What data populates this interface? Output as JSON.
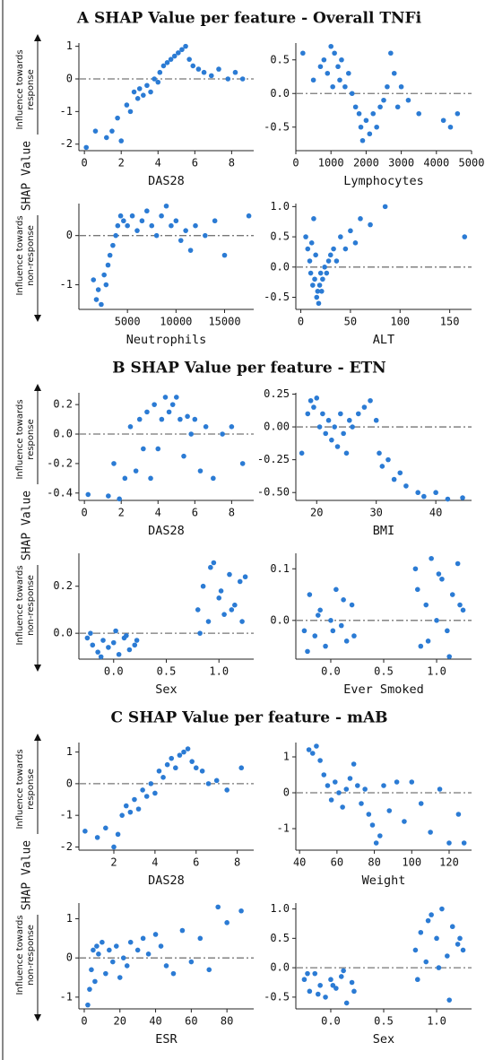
{
  "sections": [
    {
      "title": "A  SHAP Value per feature - Overall TNFi",
      "upper_note": [
        "Influence towards",
        "response"
      ],
      "side_label": "SHAP Value",
      "lower_note": [
        "Influence towards",
        "non-response"
      ]
    },
    {
      "title": "B  SHAP Value per feature - ETN",
      "upper_note": [
        "Influence towards",
        "response"
      ],
      "side_label": "SHAP Value",
      "lower_note": [
        "Influence towards",
        "non-response"
      ]
    },
    {
      "title": "C  SHAP Value per feature - mAB",
      "upper_note": [
        "Influence towards",
        "response"
      ],
      "side_label": "SHAP Value",
      "lower_note": [
        "Influence towards",
        "non-response"
      ]
    }
  ],
  "chart_data": [
    {
      "type": "scatter",
      "xlabel": "DAS28",
      "color": "#2b7bd4",
      "reference_line": 0,
      "x": [
        0.1,
        0.6,
        1.2,
        1.5,
        1.8,
        2.0,
        2.3,
        2.5,
        2.7,
        2.9,
        3.0,
        3.2,
        3.4,
        3.6,
        3.8,
        4.0,
        4.1,
        4.3,
        4.5,
        4.7,
        4.9,
        5.1,
        5.3,
        5.5,
        5.7,
        5.9,
        6.2,
        6.5,
        6.9,
        7.3,
        7.8,
        8.2,
        8.6
      ],
      "y": [
        -2.1,
        -1.6,
        -1.8,
        -1.6,
        -1.2,
        -1.9,
        -0.8,
        -1.0,
        -0.4,
        -0.6,
        -0.3,
        -0.5,
        -0.2,
        -0.4,
        0.0,
        -0.1,
        0.2,
        0.4,
        0.5,
        0.6,
        0.7,
        0.8,
        0.9,
        1.0,
        0.6,
        0.4,
        0.3,
        0.2,
        0.1,
        0.3,
        0.0,
        0.2,
        0.0
      ],
      "xlim": [
        -0.3,
        9.2
      ],
      "ylim": [
        -2.2,
        1.1
      ],
      "xticks": [
        0,
        2,
        4,
        6,
        8
      ],
      "yticks": [
        1,
        0,
        -1,
        -2
      ]
    },
    {
      "type": "scatter",
      "xlabel": "Lymphocytes",
      "color": "#2b7bd4",
      "reference_line": 0,
      "x": [
        200,
        500,
        700,
        800,
        900,
        1000,
        1050,
        1100,
        1200,
        1250,
        1300,
        1400,
        1500,
        1600,
        1700,
        1800,
        1850,
        1900,
        2000,
        2100,
        2200,
        2300,
        2400,
        2500,
        2600,
        2700,
        2800,
        2900,
        3000,
        3200,
        3500,
        4200,
        4400,
        4600
      ],
      "y": [
        0.6,
        0.2,
        0.4,
        0.5,
        0.3,
        0.7,
        0.1,
        0.6,
        0.4,
        0.2,
        0.5,
        0.1,
        0.3,
        0.0,
        -0.2,
        -0.3,
        -0.5,
        -0.7,
        -0.4,
        -0.6,
        -0.3,
        -0.5,
        -0.2,
        -0.1,
        0.1,
        0.6,
        0.3,
        -0.2,
        0.1,
        -0.1,
        -0.3,
        -0.4,
        -0.5,
        -0.3
      ],
      "xlim": [
        0,
        5000
      ],
      "ylim": [
        -0.85,
        0.75
      ],
      "xticks": [
        0,
        1000,
        2000,
        3000,
        4000,
        5000
      ],
      "yticks": [
        0.5,
        {
          "value": 0,
          "label": "0.0"
        },
        -0.5
      ]
    },
    {
      "type": "scatter",
      "xlabel": "Neutrophils",
      "color": "#2b7bd4",
      "reference_line": 0,
      "x": [
        1500,
        1800,
        2000,
        2300,
        2600,
        2800,
        3000,
        3200,
        3500,
        3800,
        4000,
        4300,
        4600,
        5000,
        5500,
        6000,
        6500,
        7000,
        7500,
        8000,
        8500,
        9000,
        9500,
        10000,
        10500,
        11000,
        11500,
        12000,
        13000,
        14000,
        15000,
        17500
      ],
      "y": [
        -0.9,
        -1.3,
        -1.1,
        -1.4,
        -0.8,
        -1.0,
        -0.6,
        -0.4,
        -0.2,
        0.0,
        0.2,
        0.4,
        0.3,
        0.2,
        0.4,
        0.1,
        0.3,
        0.5,
        0.2,
        0.0,
        0.4,
        0.6,
        0.2,
        0.3,
        -0.1,
        0.1,
        -0.3,
        0.2,
        0.0,
        0.3,
        -0.4,
        0.4
      ],
      "xlim": [
        0,
        18000
      ],
      "ylim": [
        -1.5,
        0.65
      ],
      "xticks": [
        5000,
        10000,
        15000
      ],
      "yticks": [
        0,
        -1
      ]
    },
    {
      "type": "scatter",
      "xlabel": "ALT",
      "color": "#2b7bd4",
      "reference_line": 0,
      "x": [
        5,
        7,
        9,
        10,
        11,
        12,
        13,
        14,
        15,
        16,
        17,
        18,
        19,
        20,
        21,
        22,
        24,
        26,
        28,
        30,
        33,
        36,
        40,
        45,
        50,
        55,
        60,
        70,
        85,
        165
      ],
      "y": [
        0.5,
        0.3,
        0.1,
        -0.1,
        0.4,
        -0.3,
        0.8,
        -0.2,
        0.2,
        -0.5,
        -0.4,
        -0.6,
        -0.3,
        -0.1,
        -0.4,
        -0.2,
        0.0,
        -0.1,
        0.1,
        0.2,
        0.3,
        0.1,
        0.5,
        0.3,
        0.6,
        0.4,
        0.8,
        0.7,
        1.0,
        0.5
      ],
      "xlim": [
        -5,
        172
      ],
      "ylim": [
        -0.7,
        1.05
      ],
      "xticks": [
        0,
        50,
        100,
        150
      ],
      "yticks": [
        {
          "value": 1,
          "label": "1.0"
        },
        0.5,
        {
          "value": 0,
          "label": "0.0"
        },
        -0.5
      ]
    },
    {
      "type": "scatter",
      "xlabel": "DAS28",
      "color": "#2b7bd4",
      "reference_line": 0,
      "x": [
        0.2,
        1.3,
        1.6,
        1.9,
        2.2,
        2.5,
        2.8,
        3.0,
        3.2,
        3.4,
        3.6,
        3.8,
        4.0,
        4.2,
        4.4,
        4.6,
        4.8,
        5.0,
        5.2,
        5.4,
        5.6,
        5.8,
        6.0,
        6.3,
        6.6,
        7.0,
        7.5,
        8.0,
        8.6
      ],
      "y": [
        -0.41,
        -0.42,
        -0.2,
        -0.44,
        -0.3,
        0.05,
        -0.25,
        0.1,
        -0.1,
        0.15,
        -0.3,
        0.2,
        -0.1,
        0.1,
        0.25,
        0.15,
        0.2,
        0.25,
        0.1,
        -0.15,
        0.12,
        0.0,
        0.1,
        -0.25,
        0.05,
        -0.3,
        0.0,
        0.05,
        -0.2
      ],
      "xlim": [
        -0.3,
        9.2
      ],
      "ylim": [
        -0.45,
        0.28
      ],
      "xticks": [
        0,
        2,
        4,
        6,
        8
      ],
      "yticks": [
        0.2,
        {
          "value": 0,
          "label": "0.0"
        },
        -0.2,
        -0.4
      ]
    },
    {
      "type": "scatter",
      "xlabel": "BMI",
      "color": "#2b7bd4",
      "reference_line": 0,
      "x": [
        17.5,
        18.5,
        19,
        19.5,
        20,
        20.5,
        21,
        21.5,
        22,
        22.5,
        23,
        23.5,
        24,
        24.5,
        25,
        25.5,
        26,
        27,
        28,
        29,
        30,
        30.5,
        31,
        32,
        33,
        34,
        35,
        37,
        38,
        40,
        42,
        44.5
      ],
      "y": [
        -0.2,
        0.1,
        0.2,
        0.15,
        0.22,
        0.0,
        0.1,
        -0.05,
        0.05,
        -0.1,
        0.0,
        -0.15,
        0.1,
        -0.05,
        -0.2,
        0.05,
        0.0,
        0.1,
        0.15,
        0.2,
        0.05,
        -0.2,
        -0.3,
        -0.25,
        -0.4,
        -0.35,
        -0.45,
        -0.5,
        -0.53,
        -0.5,
        -0.55,
        -0.54
      ],
      "xlim": [
        16.5,
        46
      ],
      "ylim": [
        -0.56,
        0.26
      ],
      "xticks": [
        20,
        30,
        40
      ],
      "yticks": [
        0.25,
        {
          "value": 0,
          "label": "0.00"
        },
        -0.25,
        {
          "value": -0.5,
          "label": "-0.50"
        }
      ]
    },
    {
      "type": "scatter",
      "xlabel": "Sex",
      "color": "#2b7bd4",
      "reference_line": 0,
      "x": [
        -0.25,
        -0.2,
        -0.15,
        -0.1,
        -0.05,
        0.0,
        0.05,
        0.1,
        0.15,
        0.2,
        -0.22,
        -0.12,
        0.02,
        0.12,
        0.22,
        0.8,
        0.85,
        0.9,
        0.95,
        1.0,
        1.05,
        1.1,
        1.15,
        1.2,
        1.25,
        0.82,
        0.92,
        1.02,
        1.12,
        1.22
      ],
      "y": [
        -0.02,
        -0.05,
        -0.08,
        -0.03,
        -0.06,
        -0.04,
        -0.09,
        -0.02,
        -0.07,
        -0.05,
        0.0,
        -0.1,
        0.01,
        -0.01,
        -0.03,
        0.1,
        0.2,
        0.05,
        0.3,
        0.15,
        0.08,
        0.25,
        0.12,
        0.22,
        0.24,
        0.0,
        0.28,
        0.18,
        0.1,
        0.05
      ],
      "xlim": [
        -0.33,
        1.33
      ],
      "ylim": [
        -0.11,
        0.34
      ],
      "xticks": [
        {
          "value": 0,
          "label": "0.0"
        },
        0.5,
        {
          "value": 1,
          "label": "1.0"
        }
      ],
      "yticks": [
        0.2,
        {
          "value": 0,
          "label": "0.0"
        }
      ]
    },
    {
      "type": "scatter",
      "xlabel": "Ever Smoked",
      "color": "#2b7bd4",
      "reference_line": 0,
      "x": [
        -0.25,
        -0.2,
        -0.15,
        -0.1,
        -0.05,
        0.0,
        0.05,
        0.1,
        0.15,
        0.2,
        -0.22,
        -0.12,
        0.02,
        0.12,
        0.22,
        0.8,
        0.85,
        0.9,
        0.95,
        1.0,
        1.05,
        1.1,
        1.15,
        1.2,
        1.25,
        0.82,
        0.92,
        1.02,
        1.12,
        1.22
      ],
      "y": [
        -0.02,
        0.05,
        -0.03,
        0.02,
        -0.05,
        0.0,
        0.06,
        -0.01,
        -0.04,
        0.03,
        -0.06,
        0.01,
        -0.02,
        0.04,
        -0.03,
        0.1,
        -0.05,
        0.03,
        0.12,
        0.0,
        0.08,
        -0.02,
        0.05,
        0.11,
        0.02,
        0.06,
        -0.04,
        0.09,
        -0.07,
        0.03
      ],
      "xlim": [
        -0.33,
        1.33
      ],
      "ylim": [
        -0.075,
        0.13
      ],
      "xticks": [
        {
          "value": 0,
          "label": "0.0"
        },
        0.5,
        {
          "value": 1,
          "label": "1.0"
        }
      ],
      "yticks": [
        0.1,
        {
          "value": 0,
          "label": "0.0"
        }
      ]
    },
    {
      "type": "scatter",
      "xlabel": "DAS28",
      "color": "#2b7bd4",
      "reference_line": 0,
      "x": [
        0.6,
        1.2,
        1.6,
        2.0,
        2.2,
        2.4,
        2.6,
        2.8,
        3.0,
        3.2,
        3.4,
        3.6,
        3.8,
        4.0,
        4.2,
        4.4,
        4.6,
        4.8,
        5.0,
        5.2,
        5.4,
        5.6,
        5.8,
        6.0,
        6.3,
        6.6,
        7.0,
        7.5,
        8.2
      ],
      "y": [
        -1.5,
        -1.7,
        -1.4,
        -2.0,
        -1.6,
        -1.0,
        -0.7,
        -0.9,
        -0.5,
        -0.8,
        -0.2,
        -0.4,
        0.0,
        -0.3,
        0.4,
        0.2,
        0.6,
        0.8,
        0.5,
        0.9,
        1.0,
        1.1,
        0.7,
        0.5,
        0.4,
        0.0,
        0.1,
        -0.2,
        0.5
      ],
      "xlim": [
        0.3,
        8.8
      ],
      "ylim": [
        -2.1,
        1.3
      ],
      "xticks": [
        2,
        4,
        6,
        8
      ],
      "yticks": [
        1,
        0,
        -1,
        -2
      ]
    },
    {
      "type": "scatter",
      "xlabel": "Weight",
      "color": "#2b7bd4",
      "reference_line": 0,
      "x": [
        45,
        47,
        49,
        51,
        53,
        55,
        57,
        59,
        61,
        63,
        65,
        67,
        69,
        71,
        73,
        75,
        77,
        79,
        81,
        83,
        85,
        88,
        92,
        96,
        100,
        105,
        110,
        115,
        120,
        125,
        128
      ],
      "y": [
        1.2,
        1.1,
        1.3,
        0.9,
        0.5,
        0.2,
        -0.2,
        0.3,
        0.0,
        -0.4,
        0.1,
        0.4,
        0.8,
        0.2,
        -0.3,
        0.1,
        -0.6,
        -0.9,
        -1.4,
        -1.2,
        0.2,
        -0.5,
        0.3,
        -0.8,
        0.3,
        -0.3,
        -1.1,
        0.1,
        -1.4,
        -0.6,
        -1.4
      ],
      "xlim": [
        38,
        132
      ],
      "ylim": [
        -1.6,
        1.4
      ],
      "xticks": [
        40,
        60,
        80,
        100,
        120
      ],
      "yticks": [
        1,
        0,
        -1
      ]
    },
    {
      "type": "scatter",
      "xlabel": "ESR",
      "color": "#2b7bd4",
      "reference_line": 0,
      "x": [
        2,
        3,
        4,
        5,
        6,
        7,
        8,
        10,
        12,
        14,
        16,
        18,
        20,
        22,
        24,
        26,
        30,
        33,
        36,
        40,
        43,
        46,
        50,
        55,
        60,
        65,
        70,
        75,
        80,
        88
      ],
      "y": [
        -1.2,
        -0.8,
        -0.3,
        0.2,
        -0.6,
        0.3,
        0.1,
        0.4,
        -0.4,
        0.2,
        -0.1,
        0.3,
        -0.5,
        0.0,
        -0.2,
        0.4,
        0.2,
        0.5,
        0.1,
        0.6,
        0.3,
        -0.2,
        -0.4,
        0.7,
        -0.1,
        0.5,
        -0.3,
        1.3,
        0.9,
        1.2
      ],
      "xlim": [
        -3,
        95
      ],
      "ylim": [
        -1.3,
        1.4
      ],
      "xticks": [
        0,
        20,
        40,
        60,
        80
      ],
      "yticks": [
        1,
        0,
        -1
      ]
    },
    {
      "type": "scatter",
      "xlabel": "Sex",
      "color": "#2b7bd4",
      "reference_line": 0,
      "x": [
        -0.25,
        -0.2,
        -0.15,
        -0.1,
        -0.05,
        0.0,
        0.05,
        0.1,
        0.15,
        0.2,
        -0.22,
        -0.12,
        0.02,
        0.12,
        0.22,
        0.8,
        0.85,
        0.9,
        0.95,
        1.0,
        1.05,
        1.1,
        1.15,
        1.2,
        1.25,
        0.82,
        0.92,
        1.02,
        1.12,
        1.22
      ],
      "y": [
        -0.2,
        -0.4,
        -0.1,
        -0.3,
        -0.5,
        -0.2,
        -0.35,
        -0.15,
        -0.6,
        -0.25,
        -0.1,
        -0.45,
        -0.3,
        -0.05,
        -0.4,
        0.3,
        0.6,
        0.1,
        0.9,
        0.5,
        1.0,
        0.2,
        0.7,
        0.4,
        0.3,
        -0.2,
        0.8,
        0.0,
        -0.55,
        0.5
      ],
      "xlim": [
        -0.33,
        1.33
      ],
      "ylim": [
        -0.7,
        1.1
      ],
      "xticks": [
        {
          "value": 0,
          "label": "0.0"
        },
        0.5,
        {
          "value": 1,
          "label": "1.0"
        }
      ],
      "yticks": [
        {
          "value": 1,
          "label": "1.0"
        },
        0.5,
        {
          "value": 0,
          "label": "0.0"
        },
        -0.5
      ]
    }
  ]
}
